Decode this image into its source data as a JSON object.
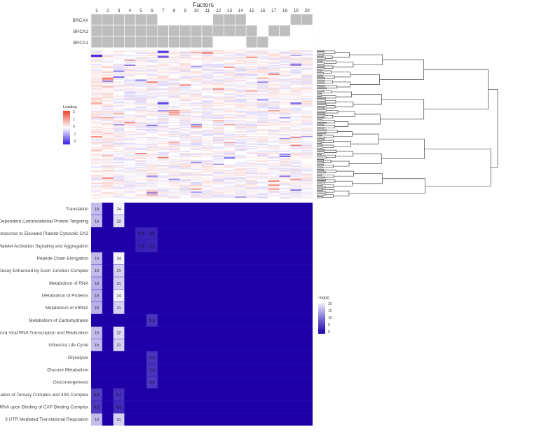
{
  "figure": {
    "factors_title": "Factors",
    "factor_labels": [
      "1",
      "2",
      "3",
      "4",
      "5",
      "6",
      "7",
      "8",
      "9",
      "10",
      "11",
      "12",
      "13",
      "14",
      "15",
      "16",
      "17",
      "18",
      "19",
      "20"
    ],
    "annotation_rows": [
      {
        "label": "BRCAX",
        "cells": [
          1,
          1,
          1,
          1,
          1,
          1,
          0,
          0,
          0,
          0,
          0,
          1,
          1,
          1,
          0,
          0,
          0,
          0,
          1,
          1
        ]
      },
      {
        "label": "BRCA2",
        "cells": [
          1,
          1,
          1,
          1,
          1,
          1,
          1,
          1,
          1,
          1,
          1,
          1,
          1,
          1,
          1,
          0,
          1,
          1,
          0,
          0
        ]
      },
      {
        "label": "BRCA1",
        "cells": [
          1,
          1,
          1,
          1,
          1,
          1,
          1,
          1,
          1,
          1,
          1,
          0,
          0,
          0,
          1,
          1,
          0,
          0,
          0,
          0
        ]
      }
    ],
    "loading_legend": {
      "title": "Loading",
      "ticks": [
        "2",
        "1",
        "0",
        "-1",
        "-2"
      ]
    },
    "pval_legend": {
      "title": "-log(p)",
      "ticks": [
        "20",
        "15",
        "10",
        "5",
        "0"
      ]
    },
    "colors": {
      "annotation_on": "#bebebe",
      "annotation_off": "#ffffff",
      "heat_low": "#1f00a8",
      "heat_mid": "#7b6fd6",
      "heat_high": "#f4f2fb",
      "loading_pos": "#e8402a",
      "loading_neg": "#3a1ee0",
      "dendrogram": "#444444"
    }
  },
  "chart_data": {
    "type": "heatmap",
    "title": "",
    "xlabel": "Factors",
    "x": [
      "1",
      "2",
      "3",
      "4",
      "5",
      "6",
      "7",
      "8",
      "9",
      "10",
      "11",
      "12",
      "13",
      "14",
      "15",
      "16",
      "17",
      "18",
      "19",
      "20"
    ],
    "rows": [
      {
        "pathway": "Translation",
        "cells": [
          {
            "f": 1,
            "v": 19
          },
          {
            "f": 3,
            "v": 24
          }
        ]
      },
      {
        "pathway": "RP Dependent Cotranslational Protein Targeting",
        "cells": [
          {
            "f": 1,
            "v": 19
          },
          {
            "f": 3,
            "v": 22
          }
        ]
      },
      {
        "pathway": "Response to Elevated Platelet Cytosolic CA2",
        "cells": [
          {
            "f": 5,
            "v": 3.7
          },
          {
            "f": 6,
            "v": 3.8
          }
        ]
      },
      {
        "pathway": "Platelet Activation Signaling and Aggregation",
        "cells": [
          {
            "f": 5,
            "v": 3.3
          },
          {
            "f": 6,
            "v": 3.8
          }
        ]
      },
      {
        "pathway": "Peptide Chain Elongation",
        "cells": [
          {
            "f": 1,
            "v": 19
          },
          {
            "f": 3,
            "v": 24
          }
        ]
      },
      {
        "pathway": "ed Decay Enhanced by Exon Junction Complex",
        "cells": [
          {
            "f": 1,
            "v": 19
          },
          {
            "f": 3,
            "v": 21
          }
        ]
      },
      {
        "pathway": "Metabolism of RNA",
        "cells": [
          {
            "f": 1,
            "v": 18
          },
          {
            "f": 3,
            "v": 21
          }
        ]
      },
      {
        "pathway": "Metabolism of Proteins",
        "cells": [
          {
            "f": 1,
            "v": 18
          },
          {
            "f": 3,
            "v": 24
          }
        ]
      },
      {
        "pathway": "Metabolism of mRNA",
        "cells": [
          {
            "f": 1,
            "v": 18
          },
          {
            "f": 3,
            "v": 21
          }
        ]
      },
      {
        "pathway": "Metabolism of Carbohydrates",
        "cells": [
          {
            "f": 6,
            "v": 5.5
          }
        ]
      },
      {
        "pathway": "luenza Viral RNA Transcription and Replication",
        "cells": [
          {
            "f": 1,
            "v": 19
          },
          {
            "f": 3,
            "v": 22
          }
        ]
      },
      {
        "pathway": "Influenza Life Cycle",
        "cells": [
          {
            "f": 1,
            "v": 19
          },
          {
            "f": 3,
            "v": 21
          }
        ]
      },
      {
        "pathway": "Glycolysis",
        "cells": [
          {
            "f": 6,
            "v": 5.6
          }
        ]
      },
      {
        "pathway": "Glucose Metabolism",
        "cells": [
          {
            "f": 6,
            "v": 5.6
          }
        ]
      },
      {
        "pathway": "Gluconeogenesis",
        "cells": [
          {
            "f": 6,
            "v": 5.8
          }
        ]
      },
      {
        "pathway": "ormation of Ternary Complex and 43S Complex",
        "cells": [
          {
            "f": 1,
            "v": 6.8
          },
          {
            "f": 3,
            "v": 5.1
          }
        ]
      },
      {
        "pathway": "of mRNA upon Binding of CAP Binding Complex",
        "cells": [
          {
            "f": 1,
            "v": 6.2
          },
          {
            "f": 3,
            "v": 4.3
          }
        ]
      },
      {
        "pathway": "3 UTR Mediated Translational Regulation",
        "cells": [
          {
            "f": 1,
            "v": 19
          },
          {
            "f": 3,
            "v": 21
          }
        ]
      }
    ],
    "value_range": [
      0,
      24
    ],
    "legend": "right"
  }
}
